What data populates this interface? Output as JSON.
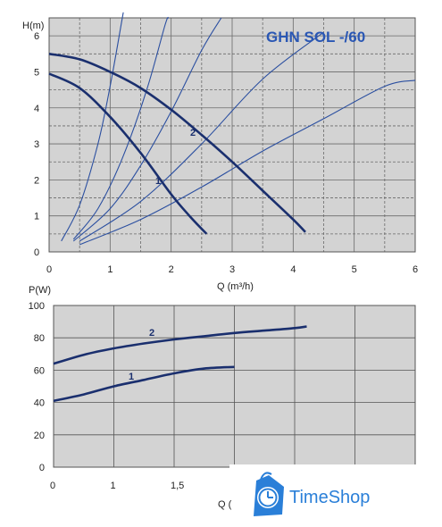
{
  "chart_data": [
    {
      "type": "line",
      "title": "GHN SOL -/60",
      "xlabel": "Q (m³/h)",
      "ylabel": "H(m)",
      "xlim": [
        0,
        6
      ],
      "ylim": [
        0,
        6.5
      ],
      "x_ticks": [
        "0",
        "1",
        "2",
        "3",
        "4",
        "5",
        "6"
      ],
      "y_ticks": [
        "0",
        "1",
        "2",
        "3",
        "4",
        "5",
        "6"
      ],
      "grid": true,
      "series": [
        {
          "name": "1",
          "x": [
            0,
            0.5,
            1.0,
            1.5,
            2.0,
            2.3,
            2.58
          ],
          "y": [
            4.95,
            4.55,
            3.75,
            2.75,
            1.6,
            1.0,
            0.5
          ]
        },
        {
          "name": "2",
          "x": [
            0,
            0.5,
            1.0,
            1.5,
            2.0,
            2.5,
            3.0,
            3.5,
            4.0,
            4.2
          ],
          "y": [
            5.5,
            5.35,
            5.0,
            4.55,
            3.95,
            3.25,
            2.5,
            1.7,
            0.9,
            0.55
          ]
        }
      ],
      "system_curves": [
        {
          "x": [
            0.2,
            0.5,
            0.8,
            1.0,
            1.2,
            1.3
          ],
          "y": [
            0.3,
            1.3,
            3.0,
            4.6,
            6.5,
            7.0
          ]
        },
        {
          "x": [
            0.4,
            0.8,
            1.2,
            1.6,
            1.9,
            2.1
          ],
          "y": [
            0.35,
            1.2,
            2.6,
            4.5,
            6.3,
            7.0
          ]
        },
        {
          "x": [
            0.4,
            1.0,
            1.5,
            2.0,
            2.5,
            3.0
          ],
          "y": [
            0.3,
            1.2,
            2.4,
            3.9,
            5.6,
            7.0
          ]
        },
        {
          "x": [
            0.5,
            1.5,
            2.5,
            3.5,
            4.5
          ],
          "y": [
            0.3,
            1.4,
            3.0,
            4.8,
            6.1
          ]
        },
        {
          "x": [
            0.5,
            1.5,
            2.5,
            3.5,
            4.5,
            5.5,
            6.1
          ],
          "y": [
            0.2,
            0.9,
            1.8,
            2.8,
            3.7,
            4.6,
            4.8
          ]
        }
      ]
    },
    {
      "type": "line",
      "xlabel": "Q (",
      "ylabel": "P(W)",
      "xlim": [
        0,
        6
      ],
      "ylim": [
        0,
        100
      ],
      "x_ticks": [
        "0",
        "1",
        "1,5"
      ],
      "y_ticks": [
        "0",
        "20",
        "40",
        "60",
        "80",
        "100"
      ],
      "grid": true,
      "series": [
        {
          "name": "1",
          "x": [
            0,
            0.5,
            1.0,
            1.5,
            2.0,
            2.5,
            3.0
          ],
          "y": [
            41,
            45,
            50,
            54,
            58,
            61,
            62
          ]
        },
        {
          "name": "2",
          "x": [
            0,
            0.5,
            1.0,
            1.5,
            2.0,
            2.5,
            3.0,
            3.5,
            4.0,
            4.2
          ],
          "y": [
            64,
            69.5,
            73.5,
            76.5,
            79,
            81,
            83,
            84.5,
            86,
            87
          ]
        }
      ]
    }
  ],
  "brand": {
    "name": "TimeShop",
    "color": "#2a7fd8",
    "icon": "clock-bag-icon"
  },
  "colors": {
    "background": "#d3d3d3",
    "grid": "#555555",
    "pump_curve": "#1a2f6e",
    "system_curve": "#2b4fa0"
  }
}
